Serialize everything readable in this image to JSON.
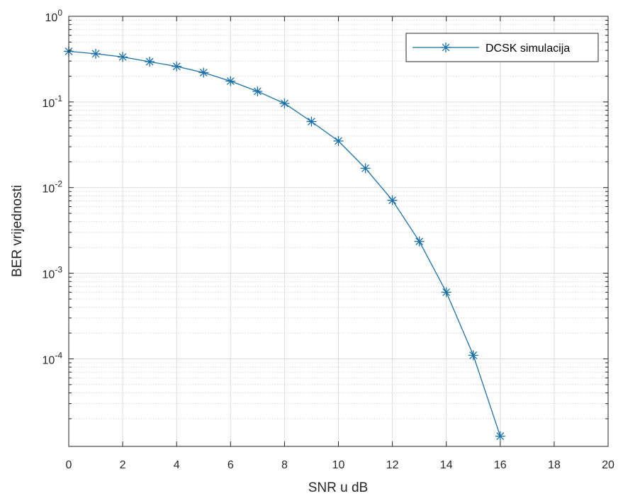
{
  "chart_data": {
    "type": "line",
    "xlabel": "SNR u dB",
    "ylabel": "BER vrijednosti",
    "xlim": [
      0,
      20
    ],
    "ylim": [
      9.5e-06,
      1
    ],
    "yscale": "log",
    "grid": true,
    "minor_grid": true,
    "legend_position": "top-right",
    "x_ticks": [
      "0",
      "2",
      "4",
      "6",
      "8",
      "10",
      "12",
      "14",
      "16",
      "18",
      "20"
    ],
    "y_ticks": [
      {
        "base": "10",
        "exp": "0"
      },
      {
        "base": "10",
        "exp": "-1"
      },
      {
        "base": "10",
        "exp": "-2"
      },
      {
        "base": "10",
        "exp": "-3"
      },
      {
        "base": "10",
        "exp": "-4"
      }
    ],
    "series": [
      {
        "name": "DCSK simulacija",
        "color": "#1a70a8",
        "marker": "asterisk",
        "x": [
          0,
          1,
          2,
          3,
          4,
          5,
          6,
          7,
          8,
          9,
          10,
          11,
          12,
          13,
          14,
          15,
          16
        ],
        "y": [
          0.39,
          0.365,
          0.335,
          0.295,
          0.26,
          0.22,
          0.175,
          0.133,
          0.096,
          0.059,
          0.035,
          0.0168,
          0.0071,
          0.00235,
          0.0006,
          0.00011,
          1.25e-05
        ]
      }
    ]
  }
}
